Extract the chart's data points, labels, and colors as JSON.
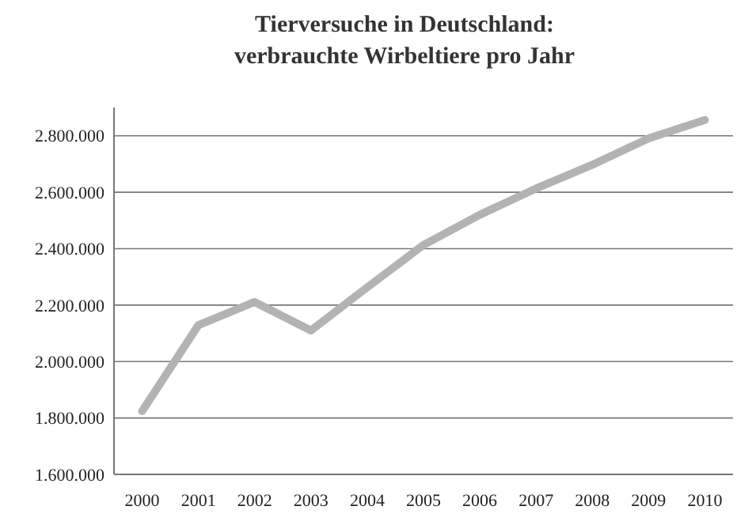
{
  "chart_data": {
    "type": "line",
    "title": "Tierversuche in Deutschland:\nverbrauchte Wirbeltiere pro Jahr",
    "categories": [
      "2000",
      "2001",
      "2002",
      "2003",
      "2004",
      "2005",
      "2006",
      "2007",
      "2008",
      "2009",
      "2010"
    ],
    "series": [
      {
        "color": "#b3b3b3",
        "values": [
          1824000,
          2129000,
          2211000,
          2110000,
          2263000,
          2413000,
          2520000,
          2613000,
          2697000,
          2791000,
          2856000
        ]
      }
    ],
    "ylim": [
      1600000,
      2900000
    ],
    "yticks": [
      {
        "value": 1600000,
        "label": "1.600.000"
      },
      {
        "value": 1800000,
        "label": "1.800.000"
      },
      {
        "value": 2000000,
        "label": "2.000.000"
      },
      {
        "value": 2200000,
        "label": "2.200.000"
      },
      {
        "value": 2400000,
        "label": "2.400.000"
      },
      {
        "value": 2600000,
        "label": "2.600.000"
      },
      {
        "value": 2800000,
        "label": "2.800.000"
      }
    ],
    "grid": "y",
    "marker": "none",
    "line_style": "solid"
  }
}
